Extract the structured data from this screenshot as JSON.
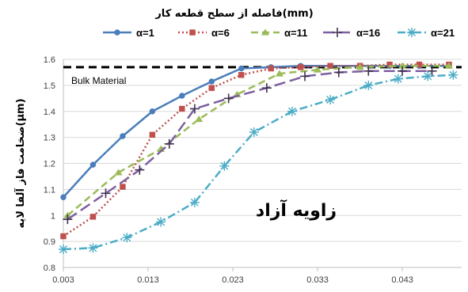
{
  "chart_data": {
    "type": "line",
    "title": "فاصله از سطح قطعه کار(mm)",
    "ylabel": "ضخامت فاز آلفا لایه(µm)",
    "xlabel": "",
    "xlim": [
      0.003,
      0.05
    ],
    "ylim": [
      0.8,
      1.6
    ],
    "xticks": [
      "0.003",
      "0.013",
      "0.023",
      "0.033",
      "0.043"
    ],
    "xtick_values": [
      0.003,
      0.013,
      0.023,
      0.033,
      0.043
    ],
    "yticks": [
      "0.8",
      "0.9",
      "1",
      "1.1",
      "1.2",
      "1.3",
      "1.4",
      "1.5",
      "1.6"
    ],
    "ytick_values": [
      0.8,
      0.9,
      1.0,
      1.1,
      1.2,
      1.3,
      1.4,
      1.5,
      1.6
    ],
    "grid": "horizontal",
    "legend_position": "top",
    "reference_line": {
      "label": "Bulk Material",
      "y": 1.57,
      "color": "#000000",
      "style": "dashed"
    },
    "annotation": "زاویه آزاد",
    "series": [
      {
        "name": "α=1",
        "color": "#4a7ebb",
        "marker": "circle",
        "dash": "solid",
        "x": [
          0.003,
          0.0065,
          0.01,
          0.0135,
          0.017,
          0.0205,
          0.024,
          0.0275,
          0.031,
          0.0345,
          0.038,
          0.0415,
          0.045,
          0.0485
        ],
        "y": [
          1.07,
          1.195,
          1.305,
          1.4,
          1.46,
          1.515,
          1.565,
          1.57,
          1.575,
          1.575,
          1.575,
          1.575,
          1.575,
          1.575
        ]
      },
      {
        "name": "α=6",
        "color": "#c0504d",
        "marker": "square",
        "dash": "dotted",
        "x": [
          0.003,
          0.0065,
          0.01,
          0.0135,
          0.017,
          0.0205,
          0.024,
          0.0275,
          0.031,
          0.0345,
          0.038,
          0.0415,
          0.045,
          0.0485
        ],
        "y": [
          0.92,
          0.995,
          1.11,
          1.31,
          1.41,
          1.49,
          1.54,
          1.565,
          1.57,
          1.575,
          1.575,
          1.58,
          1.58,
          1.58
        ]
      },
      {
        "name": "α=11",
        "color": "#9bbb59",
        "marker": "triangle",
        "dash": "dashed",
        "x": [
          0.0035,
          0.0095,
          0.0145,
          0.019,
          0.0235,
          0.0285,
          0.033,
          0.038,
          0.043,
          0.0485
        ],
        "y": [
          1.0,
          1.165,
          1.255,
          1.37,
          1.465,
          1.545,
          1.56,
          1.57,
          1.575,
          1.575
        ]
      },
      {
        "name": "α=16",
        "color": "#403152",
        "line_color": "#7d60a0",
        "marker": "plus",
        "dash": "longdash",
        "x": [
          0.0035,
          0.008,
          0.012,
          0.0155,
          0.0185,
          0.0225,
          0.027,
          0.0315,
          0.0355,
          0.039,
          0.043,
          0.0465
        ],
        "y": [
          0.985,
          1.085,
          1.175,
          1.275,
          1.41,
          1.45,
          1.49,
          1.535,
          1.55,
          1.555,
          1.555,
          1.555
        ]
      },
      {
        "name": "α=21",
        "color": "#4bacc6",
        "marker": "asterisk",
        "dash": "dashdot",
        "x": [
          0.003,
          0.0065,
          0.0105,
          0.0145,
          0.0185,
          0.022,
          0.0255,
          0.03,
          0.0345,
          0.039,
          0.0425,
          0.046,
          0.049
        ],
        "y": [
          0.87,
          0.875,
          0.915,
          0.975,
          1.05,
          1.19,
          1.32,
          1.4,
          1.445,
          1.5,
          1.525,
          1.535,
          1.54
        ]
      }
    ]
  }
}
